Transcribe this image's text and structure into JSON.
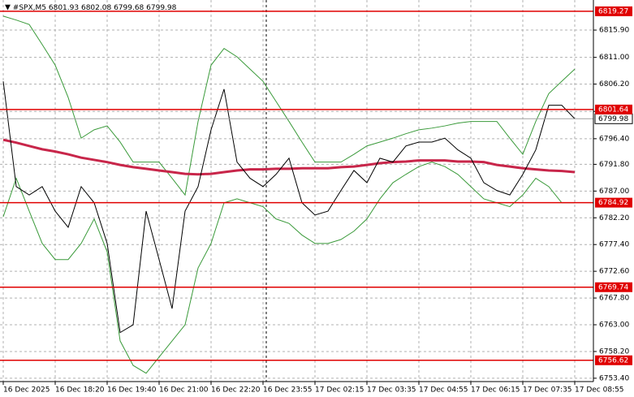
{
  "chart_data": {
    "type": "line",
    "symbol": "#SPX,M5",
    "ohlc": [
      6801.93,
      6802.08,
      6799.68,
      6799.98
    ],
    "categories": [
      "16 Dec 2025",
      null,
      null,
      null,
      "16 Dec 18:20",
      null,
      null,
      null,
      "16 Dec 19:40",
      null,
      null,
      null,
      "16 Dec 21:00",
      null,
      null,
      null,
      "16 Dec 22:20",
      null,
      null,
      null,
      "16 Dec 23:55",
      null,
      null,
      null,
      "17 Dec 02:15",
      null,
      null,
      null,
      "17 Dec 03:35",
      null,
      null,
      null,
      "17 Dec 04:55",
      null,
      null,
      null,
      "17 Dec 06:15",
      null,
      null,
      null,
      "17 Dec 07:35",
      null,
      null,
      null,
      "17 Dec 08:55"
    ],
    "series": [
      {
        "color": "#3a9a3a",
        "values": [
          6818.4,
          6817.7,
          6816.9,
          6813.3,
          6809.6,
          6803.8,
          6796.5,
          6798.0,
          6798.7,
          6795.8,
          6792.2,
          6792.2,
          6792.2,
          6789.3,
          6786.3,
          6799.5,
          6809.6,
          6812.6,
          6811.1,
          6808.9,
          6806.7,
          6803.1,
          6799.5,
          6795.8,
          6792.2,
          6792.2,
          6792.2,
          6793.6,
          6795.1,
          6795.8,
          6796.5,
          6797.3,
          6798.0,
          6798.3,
          6798.7,
          6799.2,
          6799.5,
          6799.5,
          6799.5,
          6796.5,
          6793.6,
          6799.5,
          6804.5,
          6806.7,
          6808.9
        ]
      },
      {
        "color": "#3a9a3a",
        "values": [
          6782.4,
          6789.3,
          6783.4,
          6777.6,
          6774.7,
          6774.7,
          6777.6,
          6782.0,
          6776.1,
          6760.1,
          6755.7,
          6754.3,
          6757.2,
          6760.1,
          6763.0,
          6773.2,
          6777.6,
          6784.9,
          6785.6,
          6784.9,
          6784.2,
          6782.0,
          6781.2,
          6779.1,
          6777.6,
          6777.6,
          6778.3,
          6779.8,
          6782.0,
          6785.6,
          6788.5,
          6790.0,
          6791.4,
          6792.2,
          6791.4,
          6790.0,
          6787.8,
          6785.6,
          6784.9,
          6784.2,
          6786.3,
          6789.3,
          6787.8,
          6784.9,
          6784.9
        ]
      },
      {
        "color": "#c8264a",
        "values": [
          6796.2,
          6795.7,
          6795.1,
          6794.5,
          6794.1,
          6793.6,
          6793.0,
          6792.6,
          6792.2,
          6791.7,
          6791.3,
          6791.0,
          6790.7,
          6790.4,
          6790.1,
          6790.0,
          6790.1,
          6790.4,
          6790.7,
          6790.9,
          6790.9,
          6791.0,
          6791.0,
          6791.1,
          6791.1,
          6791.1,
          6791.3,
          6791.4,
          6791.7,
          6792.0,
          6792.2,
          6792.3,
          6792.5,
          6792.5,
          6792.5,
          6792.3,
          6792.3,
          6792.2,
          6791.7,
          6791.4,
          6791.1,
          6790.9,
          6790.7,
          6790.6,
          6790.4
        ]
      },
      {
        "color": "#000000",
        "values": [
          6806.7,
          6787.8,
          6786.3,
          6787.8,
          6783.4,
          6780.5,
          6787.8,
          6784.9,
          6777.6,
          6761.6,
          6763.0,
          6783.4,
          6774.7,
          6765.9,
          6783.4,
          6787.8,
          6798.0,
          6805.3,
          6792.2,
          6789.3,
          6787.8,
          6790.0,
          6792.9,
          6784.9,
          6782.7,
          6783.4,
          6787.1,
          6790.7,
          6788.5,
          6792.9,
          6792.2,
          6795.1,
          6795.8,
          6795.8,
          6796.5,
          6794.4,
          6792.9,
          6788.5,
          6787.1,
          6786.3,
          6790.0,
          6794.4,
          6802.4,
          6802.4,
          6799.98
        ]
      }
    ],
    "levels": [
      6819.27,
      6801.64,
      6784.92,
      6769.74,
      6756.62
    ],
    "level_color": "#e00000",
    "current_price": 6799.98,
    "ylim": [
      6752.8,
      6821.3
    ],
    "yticks": [
      {
        "value": 6815.9,
        "label": "6815.90"
      },
      {
        "value": 6811,
        "label": "6811.00"
      },
      {
        "value": 6806.2,
        "label": "6806.20"
      },
      {
        "value": 6801.3,
        "label": "6801.30"
      },
      {
        "value": 6796.4,
        "label": "6796.40"
      },
      {
        "value": 6791.8,
        "label": "6791.80"
      },
      {
        "value": 6787,
        "label": "6787.00"
      },
      {
        "value": 6782.2,
        "label": "6782.20"
      },
      {
        "value": 6777.4,
        "label": "6777.40"
      },
      {
        "value": 6772.6,
        "label": "6772.60"
      },
      {
        "value": 6767.8,
        "label": "6767.80"
      },
      {
        "value": 6763,
        "label": "6763.00"
      },
      {
        "value": 6758.2,
        "label": "6758.20"
      },
      {
        "value": 6753.4,
        "label": "6753.40"
      }
    ],
    "grid": true
  }
}
